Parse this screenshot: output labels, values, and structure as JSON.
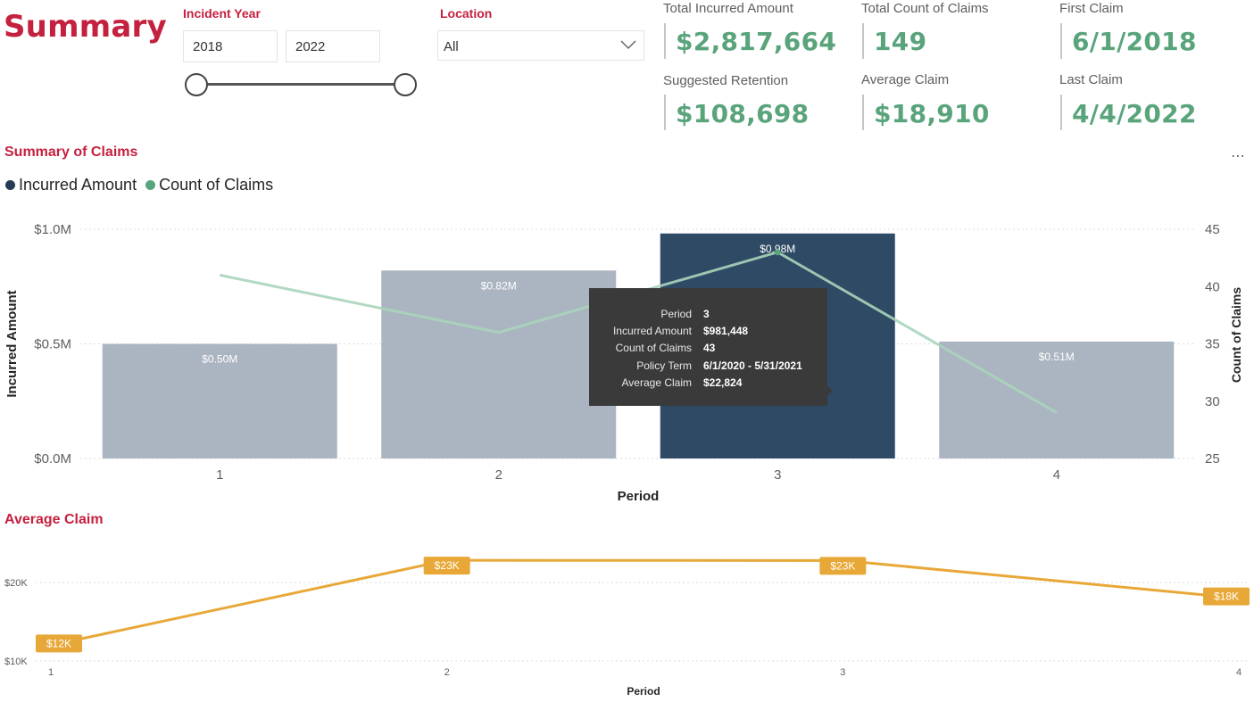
{
  "page": {
    "title": "Summary"
  },
  "slicers": {
    "incident_year": {
      "label": "Incident Year",
      "start": "2018",
      "end": "2022"
    },
    "location": {
      "label": "Location",
      "selected": "All"
    }
  },
  "cards": [
    {
      "label": "Total Incurred Amount",
      "value": "$2,817,664"
    },
    {
      "label": "Total Count of Claims",
      "value": "149"
    },
    {
      "label": "First Claim",
      "value": "6/1/2018"
    },
    {
      "label": "Suggested Retention",
      "value": "$108,698"
    },
    {
      "label": "Average Claim",
      "value": "$18,910"
    },
    {
      "label": "Last Claim",
      "value": "4/4/2022"
    }
  ],
  "sections": {
    "summary_title": "Summary of Claims",
    "average_title": "Average Claim"
  },
  "legend": [
    {
      "label": "Incurred Amount",
      "color": "#253a55"
    },
    {
      "label": "Count of Claims",
      "color": "#5aa47c"
    }
  ],
  "tooltip": [
    {
      "key": "Period",
      "value": "3"
    },
    {
      "key": "Incurred Amount",
      "value": "$981,448"
    },
    {
      "key": "Count of Claims",
      "value": "43"
    },
    {
      "key": "Policy Term",
      "value": "6/1/2020 - 5/31/2021"
    },
    {
      "key": "Average Claim",
      "value": "$22,824"
    }
  ],
  "chart_data": [
    {
      "type": "bar",
      "title": "Summary of Claims",
      "xlabel": "Period",
      "ylabel": "Incurred Amount",
      "y2label": "Count of Claims",
      "categories": [
        "1",
        "2",
        "3",
        "4"
      ],
      "series": [
        {
          "name": "Incurred Amount",
          "values": [
            500000,
            820000,
            981448,
            510000
          ],
          "labels": [
            "$0.50M",
            "$0.82M",
            "$0.98M",
            "$0.51M"
          ],
          "highlighted_index": 2
        },
        {
          "name": "Count of Claims",
          "type": "line",
          "axis": "right",
          "values": [
            41,
            36,
            43,
            29
          ]
        }
      ],
      "y_ticks": [
        "$0.0M",
        "$0.5M",
        "$1.0M"
      ],
      "y2_ticks": [
        "25",
        "30",
        "35",
        "40",
        "45"
      ],
      "ylim": [
        0,
        1000000
      ],
      "y2lim": [
        25,
        45
      ],
      "grid": true,
      "legend_position": "top-left"
    },
    {
      "type": "line",
      "title": "Average Claim",
      "xlabel": "Period",
      "categories": [
        "1",
        "2",
        "3",
        "4"
      ],
      "values": [
        12000,
        22824,
        22800,
        18000
      ],
      "labels": [
        "$12K",
        "$23K",
        "$23K",
        "$18K"
      ],
      "y_ticks": [
        "$10K",
        "$20K"
      ],
      "ylim": [
        10000,
        20000
      ],
      "color": "#e8a838",
      "grid": true
    }
  ]
}
